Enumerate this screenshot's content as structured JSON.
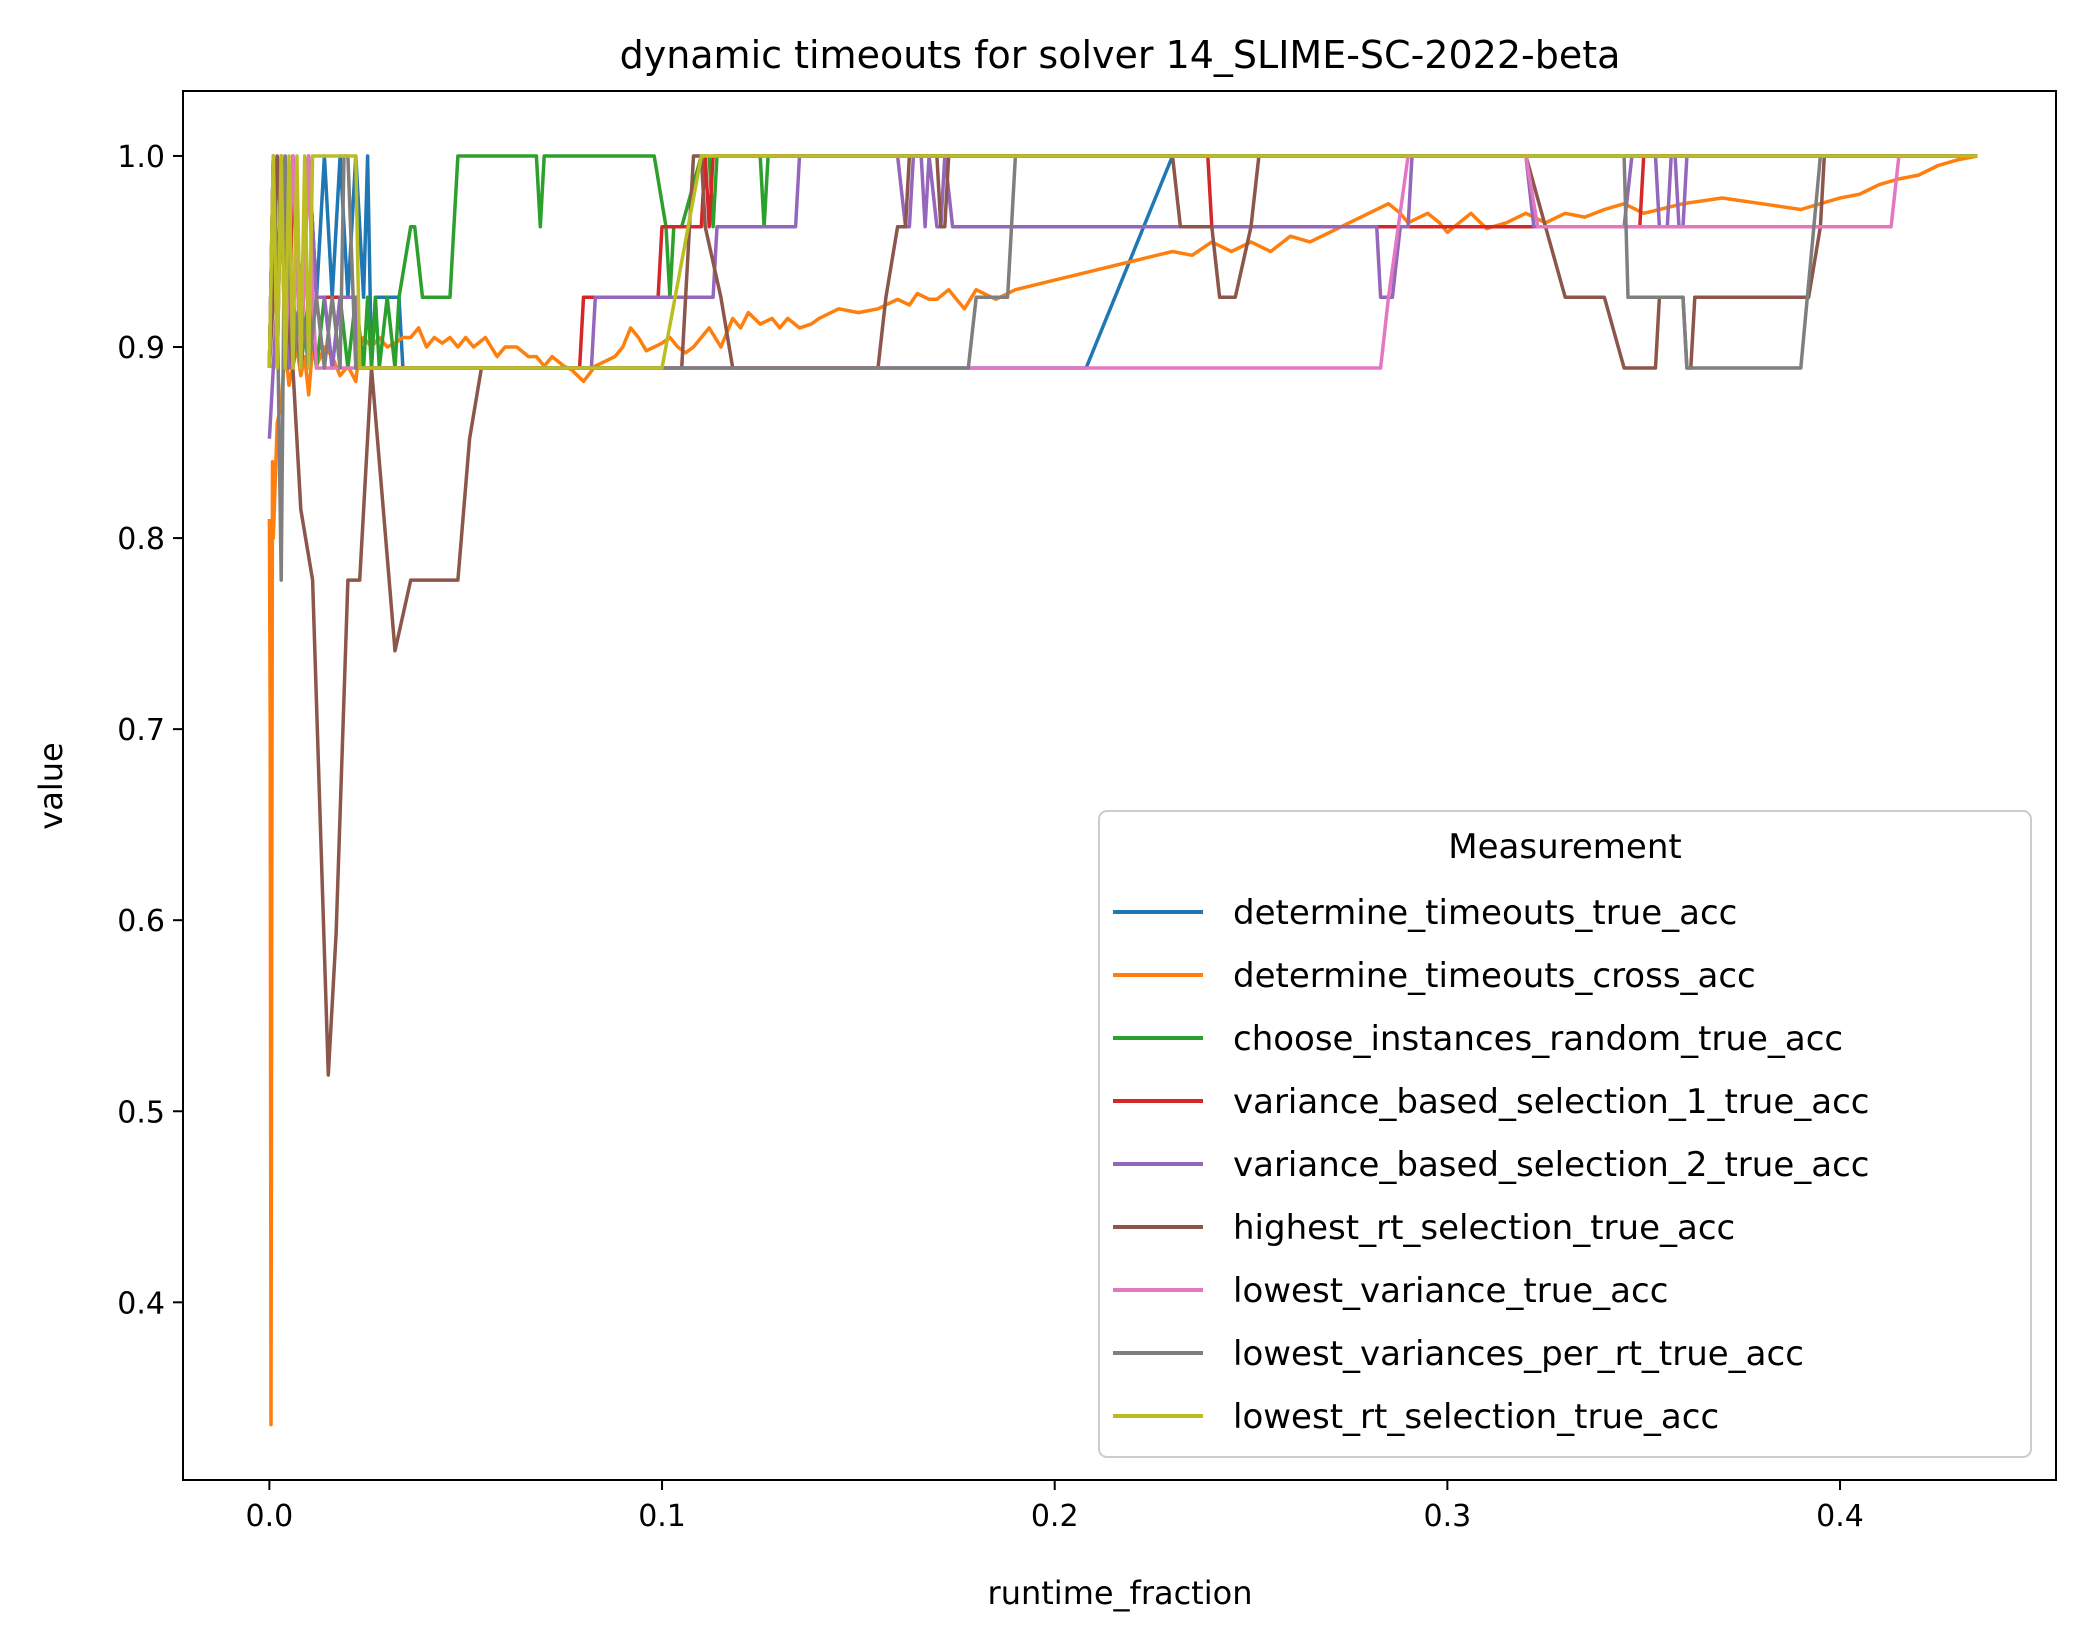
{
  "chart_data": {
    "type": "line",
    "title": "dynamic timeouts for solver 14_SLIME-SC-2022-beta",
    "xlabel": "runtime_fraction",
    "ylabel": "value",
    "xlim": [
      -0.022,
      0.455
    ],
    "ylim": [
      0.307,
      1.034
    ],
    "xticks": [
      0.0,
      0.1,
      0.2,
      0.3,
      0.4
    ],
    "xtick_labels": [
      "0.0",
      "0.1",
      "0.2",
      "0.3",
      "0.4"
    ],
    "yticks": [
      0.4,
      0.5,
      0.6,
      0.7,
      0.8,
      0.9,
      1.0
    ],
    "ytick_labels": [
      "0.4",
      "0.5",
      "0.6",
      "0.7",
      "0.8",
      "0.9",
      "1.0"
    ],
    "grid": false,
    "legend": {
      "title": "Measurement",
      "position": "lower-right"
    },
    "series": [
      {
        "name": "determine_timeouts_true_acc",
        "color": "#1f77b4",
        "x": [
          0,
          0.001,
          0.002,
          0.003,
          0.004,
          0.006,
          0.008,
          0.01,
          0.012,
          0.014,
          0.016,
          0.018,
          0.02,
          0.022,
          0.024,
          0.025,
          0.026,
          0.027,
          0.03,
          0.033,
          0.034,
          0.208,
          0.23,
          0.232,
          0.435
        ],
        "y": [
          0.889,
          1.0,
          0.889,
          1.0,
          0.889,
          1.0,
          0.926,
          1.0,
          0.926,
          1.0,
          0.926,
          1.0,
          0.926,
          1.0,
          0.926,
          1.0,
          0.889,
          0.926,
          0.926,
          0.926,
          0.889,
          0.889,
          1.0,
          1.0,
          1.0
        ]
      },
      {
        "name": "determine_timeouts_cross_acc",
        "color": "#ff7f0e",
        "x": [
          0,
          0.0002,
          0.0004,
          0.0006,
          0.0008,
          0.001,
          0.002,
          0.003,
          0.004,
          0.005,
          0.006,
          0.007,
          0.008,
          0.009,
          0.01,
          0.011,
          0.012,
          0.014,
          0.016,
          0.018,
          0.02,
          0.022,
          0.023,
          0.024,
          0.026,
          0.028,
          0.03,
          0.032,
          0.034,
          0.036,
          0.038,
          0.04,
          0.042,
          0.044,
          0.046,
          0.048,
          0.05,
          0.052,
          0.055,
          0.058,
          0.06,
          0.063,
          0.066,
          0.068,
          0.07,
          0.072,
          0.075,
          0.077,
          0.08,
          0.083,
          0.085,
          0.088,
          0.09,
          0.092,
          0.094,
          0.096,
          0.098,
          0.1,
          0.102,
          0.104,
          0.106,
          0.108,
          0.11,
          0.112,
          0.115,
          0.118,
          0.12,
          0.122,
          0.125,
          0.128,
          0.13,
          0.132,
          0.135,
          0.138,
          0.14,
          0.145,
          0.15,
          0.155,
          0.16,
          0.163,
          0.165,
          0.168,
          0.17,
          0.173,
          0.175,
          0.177,
          0.18,
          0.185,
          0.19,
          0.2,
          0.21,
          0.22,
          0.23,
          0.235,
          0.24,
          0.245,
          0.25,
          0.255,
          0.26,
          0.265,
          0.27,
          0.275,
          0.28,
          0.285,
          0.288,
          0.29,
          0.293,
          0.295,
          0.298,
          0.3,
          0.303,
          0.306,
          0.31,
          0.315,
          0.32,
          0.325,
          0.33,
          0.335,
          0.34,
          0.345,
          0.35,
          0.36,
          0.37,
          0.38,
          0.39,
          0.395,
          0.4,
          0.405,
          0.41,
          0.415,
          0.42,
          0.425,
          0.43,
          0.435
        ],
        "y": [
          0.81,
          0.7,
          0.336,
          0.59,
          0.84,
          0.8,
          0.86,
          0.87,
          0.9,
          0.88,
          0.89,
          0.9,
          0.885,
          0.895,
          0.875,
          0.9,
          0.89,
          0.9,
          0.895,
          0.885,
          0.89,
          0.882,
          0.9,
          0.905,
          0.9,
          0.905,
          0.9,
          0.902,
          0.905,
          0.905,
          0.91,
          0.9,
          0.905,
          0.902,
          0.905,
          0.9,
          0.905,
          0.9,
          0.905,
          0.895,
          0.9,
          0.9,
          0.895,
          0.895,
          0.89,
          0.895,
          0.89,
          0.888,
          0.882,
          0.89,
          0.892,
          0.895,
          0.9,
          0.91,
          0.905,
          0.898,
          0.9,
          0.902,
          0.905,
          0.9,
          0.897,
          0.9,
          0.905,
          0.91,
          0.9,
          0.915,
          0.91,
          0.918,
          0.912,
          0.915,
          0.91,
          0.915,
          0.91,
          0.912,
          0.915,
          0.92,
          0.918,
          0.92,
          0.925,
          0.922,
          0.928,
          0.925,
          0.925,
          0.93,
          0.925,
          0.92,
          0.93,
          0.925,
          0.93,
          0.935,
          0.94,
          0.945,
          0.95,
          0.948,
          0.955,
          0.95,
          0.955,
          0.95,
          0.958,
          0.955,
          0.96,
          0.965,
          0.97,
          0.975,
          0.97,
          0.965,
          0.968,
          0.97,
          0.965,
          0.96,
          0.965,
          0.97,
          0.962,
          0.965,
          0.97,
          0.965,
          0.97,
          0.968,
          0.972,
          0.975,
          0.97,
          0.975,
          0.978,
          0.975,
          0.972,
          0.975,
          0.978,
          0.98,
          0.985,
          0.988,
          0.99,
          0.995,
          0.998,
          1.0
        ]
      },
      {
        "name": "choose_instances_random_true_acc",
        "color": "#2ca02c",
        "x": [
          0,
          0.001,
          0.002,
          0.003,
          0.004,
          0.006,
          0.008,
          0.01,
          0.012,
          0.014,
          0.016,
          0.018,
          0.02,
          0.022,
          0.024,
          0.025,
          0.026,
          0.027,
          0.028,
          0.03,
          0.032,
          0.033,
          0.036,
          0.037,
          0.039,
          0.04,
          0.046,
          0.047,
          0.048,
          0.068,
          0.069,
          0.07,
          0.098,
          0.101,
          0.102,
          0.103,
          0.105,
          0.11,
          0.112,
          0.113,
          0.114,
          0.125,
          0.126,
          0.127,
          0.128,
          0.435
        ],
        "y": [
          0.889,
          1.0,
          0.926,
          1.0,
          0.889,
          0.926,
          0.889,
          0.926,
          0.889,
          0.926,
          0.889,
          0.926,
          0.889,
          0.926,
          0.889,
          0.926,
          0.889,
          0.926,
          0.889,
          0.926,
          0.889,
          0.926,
          0.963,
          0.963,
          0.926,
          0.926,
          0.926,
          0.963,
          1.0,
          1.0,
          0.963,
          1.0,
          1.0,
          0.963,
          0.926,
          0.963,
          0.963,
          1.0,
          1.0,
          0.963,
          1.0,
          1.0,
          0.963,
          1.0,
          1.0,
          1.0
        ]
      },
      {
        "name": "variance_based_selection_1_true_acc",
        "color": "#d62728",
        "x": [
          0,
          0.001,
          0.002,
          0.003,
          0.005,
          0.006,
          0.008,
          0.01,
          0.012,
          0.022,
          0.023,
          0.079,
          0.08,
          0.099,
          0.1,
          0.11,
          0.111,
          0.112,
          0.113,
          0.114,
          0.238,
          0.239,
          0.24,
          0.241,
          0.242,
          0.349,
          0.35,
          0.351,
          0.352,
          0.435
        ],
        "y": [
          0.889,
          1.0,
          0.889,
          1.0,
          0.889,
          1.0,
          0.889,
          1.0,
          0.926,
          0.926,
          0.889,
          0.889,
          0.926,
          0.926,
          0.963,
          0.963,
          1.0,
          0.963,
          1.0,
          1.0,
          1.0,
          1.0,
          0.963,
          0.963,
          0.963,
          0.963,
          1.0,
          1.0,
          1.0,
          1.0
        ]
      },
      {
        "name": "variance_based_selection_2_true_acc",
        "color": "#9467bd",
        "x": [
          0,
          0.001,
          0.002,
          0.004,
          0.005,
          0.008,
          0.01,
          0.011,
          0.012,
          0.014,
          0.016,
          0.018,
          0.02,
          0.022,
          0.023,
          0.082,
          0.083,
          0.113,
          0.114,
          0.116,
          0.134,
          0.135,
          0.16,
          0.162,
          0.163,
          0.164,
          0.166,
          0.167,
          0.168,
          0.17,
          0.171,
          0.172,
          0.174,
          0.176,
          0.178,
          0.28,
          0.282,
          0.283,
          0.286,
          0.288,
          0.29,
          0.291,
          0.292,
          0.32,
          0.322,
          0.345,
          0.347,
          0.348,
          0.353,
          0.354,
          0.356,
          0.357,
          0.358,
          0.359,
          0.36,
          0.361,
          0.362,
          0.435
        ],
        "y": [
          0.852,
          0.889,
          0.926,
          1.0,
          0.889,
          0.926,
          1.0,
          0.963,
          0.926,
          0.926,
          0.889,
          0.926,
          0.926,
          0.926,
          0.889,
          0.889,
          0.926,
          0.926,
          0.963,
          0.963,
          0.963,
          1.0,
          1.0,
          0.963,
          0.963,
          1.0,
          1.0,
          0.963,
          1.0,
          0.963,
          0.963,
          1.0,
          0.963,
          0.963,
          0.963,
          0.963,
          0.963,
          0.926,
          0.926,
          0.963,
          0.963,
          1.0,
          1.0,
          1.0,
          0.963,
          0.963,
          1.0,
          1.0,
          1.0,
          0.963,
          0.963,
          1.0,
          1.0,
          0.963,
          0.963,
          1.0,
          1.0,
          1.0
        ]
      },
      {
        "name": "highest_rt_selection_true_acc",
        "color": "#8c564b",
        "x": [
          0,
          0.001,
          0.002,
          0.004,
          0.006,
          0.008,
          0.011,
          0.015,
          0.017,
          0.02,
          0.023,
          0.026,
          0.029,
          0.032,
          0.036,
          0.04,
          0.045,
          0.048,
          0.051,
          0.054,
          0.056,
          0.06,
          0.1,
          0.105,
          0.106,
          0.107,
          0.108,
          0.11,
          0.111,
          0.115,
          0.118,
          0.12,
          0.155,
          0.157,
          0.16,
          0.162,
          0.163,
          0.164,
          0.165,
          0.17,
          0.171,
          0.172,
          0.173,
          0.174,
          0.175,
          0.176,
          0.177,
          0.178,
          0.18,
          0.2,
          0.213,
          0.215,
          0.217,
          0.218,
          0.22,
          0.222,
          0.223,
          0.224,
          0.225,
          0.226,
          0.227,
          0.228,
          0.23,
          0.232,
          0.24,
          0.242,
          0.244,
          0.246,
          0.25,
          0.252,
          0.253,
          0.254,
          0.258,
          0.26,
          0.29,
          0.3,
          0.32,
          0.325,
          0.33,
          0.335,
          0.34,
          0.345,
          0.35,
          0.353,
          0.354,
          0.355,
          0.36,
          0.361,
          0.362,
          0.363,
          0.364,
          0.365,
          0.366,
          0.37,
          0.375,
          0.385,
          0.39,
          0.392,
          0.395,
          0.396,
          0.397,
          0.4,
          0.435
        ],
        "y": [
          0.889,
          0.926,
          1.0,
          0.926,
          0.889,
          0.815,
          0.778,
          0.519,
          0.593,
          0.778,
          0.778,
          0.889,
          0.815,
          0.741,
          0.778,
          0.778,
          0.778,
          0.778,
          0.852,
          0.889,
          0.889,
          0.889,
          0.889,
          0.889,
          0.926,
          0.963,
          1.0,
          1.0,
          0.963,
          0.926,
          0.889,
          0.889,
          0.889,
          0.926,
          0.963,
          0.963,
          1.0,
          1.0,
          1.0,
          1.0,
          0.963,
          0.963,
          1.0,
          1.0,
          1.0,
          1.0,
          1.0,
          1.0,
          1.0,
          1.0,
          1.0,
          1.0,
          1.0,
          1.0,
          1.0,
          1.0,
          1.0,
          1.0,
          1.0,
          1.0,
          1.0,
          1.0,
          1.0,
          0.963,
          0.963,
          0.926,
          0.926,
          0.926,
          0.963,
          1.0,
          1.0,
          1.0,
          1.0,
          1.0,
          1.0,
          1.0,
          1.0,
          0.963,
          0.926,
          0.926,
          0.926,
          0.889,
          0.889,
          0.889,
          0.926,
          0.926,
          0.926,
          0.889,
          0.889,
          0.926,
          0.926,
          0.926,
          0.926,
          0.926,
          0.926,
          0.926,
          0.926,
          0.926,
          0.963,
          1.0,
          1.0,
          1.0,
          1.0
        ]
      },
      {
        "name": "lowest_variance_true_acc",
        "color": "#e377c2",
        "x": [
          0,
          0.001,
          0.002,
          0.003,
          0.004,
          0.006,
          0.008,
          0.01,
          0.011,
          0.012,
          0.013,
          0.023,
          0.024,
          0.283,
          0.285,
          0.29,
          0.292,
          0.32,
          0.323,
          0.324,
          0.325,
          0.413,
          0.415,
          0.435
        ],
        "y": [
          0.889,
          1.0,
          0.889,
          1.0,
          0.889,
          1.0,
          0.889,
          1.0,
          0.926,
          0.889,
          0.889,
          0.889,
          0.889,
          0.889,
          0.926,
          1.0,
          1.0,
          1.0,
          0.963,
          0.963,
          0.963,
          0.963,
          1.0,
          1.0
        ]
      },
      {
        "name": "lowest_variances_per_rt_true_acc",
        "color": "#7f7f7f",
        "x": [
          0,
          0.001,
          0.002,
          0.003,
          0.004,
          0.006,
          0.008,
          0.01,
          0.012,
          0.014,
          0.016,
          0.018,
          0.019,
          0.02,
          0.022,
          0.023,
          0.155,
          0.16,
          0.17,
          0.175,
          0.178,
          0.18,
          0.188,
          0.19,
          0.193,
          0.2,
          0.23,
          0.32,
          0.34,
          0.345,
          0.346,
          0.355,
          0.356,
          0.358,
          0.36,
          0.361,
          0.362,
          0.365,
          0.39,
          0.395,
          0.4,
          0.435
        ],
        "y": [
          0.889,
          1.0,
          0.926,
          0.778,
          1.0,
          0.889,
          0.926,
          0.889,
          0.926,
          0.889,
          0.926,
          0.889,
          1.0,
          1.0,
          0.889,
          0.889,
          0.889,
          0.889,
          0.889,
          0.889,
          0.889,
          0.926,
          0.926,
          1.0,
          1.0,
          1.0,
          1.0,
          1.0,
          1.0,
          1.0,
          0.926,
          0.926,
          0.926,
          0.926,
          0.926,
          0.889,
          0.889,
          0.889,
          0.889,
          1.0,
          1.0,
          1.0
        ]
      },
      {
        "name": "lowest_rt_selection_true_acc",
        "color": "#bcbd22",
        "x": [
          0,
          0.001,
          0.002,
          0.003,
          0.004,
          0.005,
          0.006,
          0.007,
          0.008,
          0.009,
          0.01,
          0.011,
          0.012,
          0.013,
          0.014,
          0.016,
          0.018,
          0.02,
          0.022,
          0.023,
          0.024,
          0.099,
          0.1,
          0.11,
          0.111,
          0.435
        ],
        "y": [
          0.889,
          1.0,
          0.889,
          1.0,
          0.889,
          1.0,
          0.889,
          1.0,
          0.889,
          1.0,
          0.889,
          1.0,
          1.0,
          1.0,
          1.0,
          1.0,
          1.0,
          1.0,
          1.0,
          0.889,
          0.889,
          0.889,
          0.889,
          1.0,
          1.0,
          1.0
        ]
      }
    ]
  }
}
